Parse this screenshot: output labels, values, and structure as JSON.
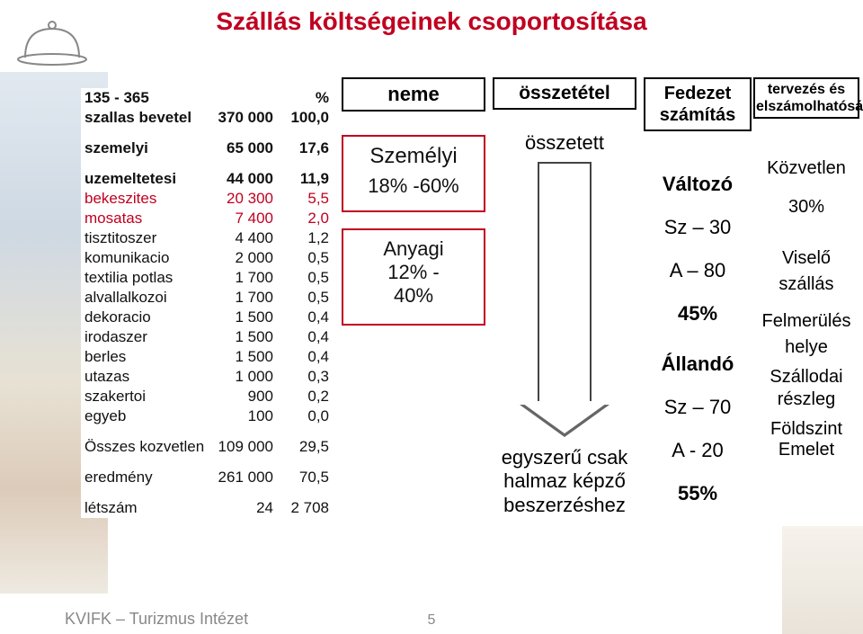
{
  "title": "Szállás költségeinek csoportosítása",
  "footer": "KVIFK – Turizmus Intézet",
  "page_number": "5",
  "table": {
    "rows": [
      {
        "label": "135 - 365",
        "val": "",
        "pct": "%",
        "bold": true
      },
      {
        "label": "szallas bevetel",
        "val": "370 000",
        "pct": "100,0",
        "bold": true
      },
      {
        "gap": true
      },
      {
        "label": "szemelyi",
        "val": "65 000",
        "pct": "17,6",
        "bold": true
      },
      {
        "gap": true
      },
      {
        "label": "uzemeltetesi",
        "val": "44 000",
        "pct": "11,9",
        "bold": true
      },
      {
        "label": "bekeszites",
        "val": "20 300",
        "pct": "5,5",
        "red": true
      },
      {
        "label": "mosatas",
        "val": "7 400",
        "pct": "2,0",
        "red": true
      },
      {
        "label": "tisztitoszer",
        "val": "4 400",
        "pct": "1,2"
      },
      {
        "label": "komunikacio",
        "val": "2 000",
        "pct": "0,5"
      },
      {
        "label": "textilia potlas",
        "val": "1 700",
        "pct": "0,5"
      },
      {
        "label": "alvallalkozoi",
        "val": "1 700",
        "pct": "0,5"
      },
      {
        "label": "dekoracio",
        "val": "1 500",
        "pct": "0,4"
      },
      {
        "label": "irodaszer",
        "val": "1 500",
        "pct": "0,4"
      },
      {
        "label": "berles",
        "val": "1 500",
        "pct": "0,4"
      },
      {
        "label": "utazas",
        "val": "1 000",
        "pct": "0,3"
      },
      {
        "label": "szakertoi",
        "val": "900",
        "pct": "0,2"
      },
      {
        "label": "egyeb",
        "val": "100",
        "pct": "0,0"
      },
      {
        "gap": true
      },
      {
        "label": "Összes kozvetlen",
        "val": "109 000",
        "pct": "29,5"
      },
      {
        "gap": true
      },
      {
        "label": "eredmény",
        "val": "261 000",
        "pct": "70,5"
      },
      {
        "gap": true
      },
      {
        "label": "létszám",
        "val": "24",
        "pct": "2 708"
      }
    ]
  },
  "col2": {
    "neme": "neme",
    "szem_title": "Személyi",
    "szem_range": "18% -60%",
    "any_title": "Anyagi",
    "any_range1": "12% -",
    "any_range2": "40%"
  },
  "col3": {
    "ossz": "összetétel",
    "osszetett": "összetett",
    "egy1": "egyszerű csak",
    "egy2": "halmaz képző",
    "egy3": "beszerzéshez"
  },
  "col4": {
    "fed1": "Fedezet",
    "fed2": "számítás",
    "l1": "Változó",
    "l2": "Sz – 30",
    "l3": "A – 80",
    "l4": "45%",
    "l5": "Állandó",
    "l6": "Sz – 70",
    "l7": "A - 20",
    "l8": "55%"
  },
  "col5": {
    "t1": "tervezés és",
    "t2": "elszámolhatóság",
    "l1": "Közvetlen",
    "l2": "30%",
    "l3": "Viselő",
    "l4": "szállás",
    "l5": "Felmerülés",
    "l6": "helye",
    "l7": "Szállodai",
    "l8": "részleg",
    "l9": "Földszint",
    "l10": "Emelet"
  },
  "colors": {
    "title": "#c00020",
    "box_border": "#000000",
    "group_border": "#c00020"
  }
}
